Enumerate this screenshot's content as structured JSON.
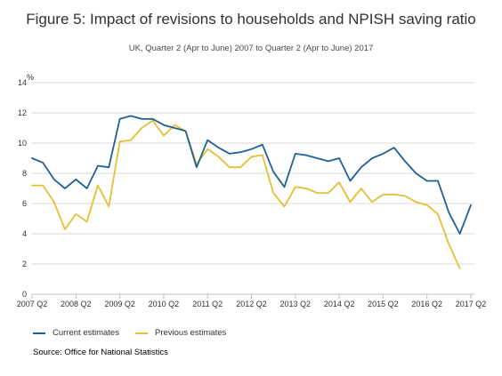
{
  "title": "Figure 5: Impact of revisions to households and NPISH saving ratio",
  "subtitle": "UK, Quarter 2 (Apr to June) 2007 to Quarter 2 (Apr to June) 2017",
  "source": "Source: Office for National Statistics",
  "colors": {
    "current": "#206095",
    "previous": "#e3c035",
    "grid": "#d9d9d9",
    "axis": "#bfbfbf"
  },
  "chart_data": {
    "type": "line",
    "ylabel": "%",
    "ylim": [
      0,
      14
    ],
    "yticks": [
      0,
      2,
      4,
      6,
      8,
      10,
      12,
      14
    ],
    "xtick_labels": [
      "2007 Q2",
      "2008 Q2",
      "2009 Q2",
      "2010 Q2",
      "2011 Q2",
      "2012 Q2",
      "2013 Q2",
      "2014 Q2",
      "2015 Q2",
      "2016 Q2",
      "2017 Q2"
    ],
    "x": [
      "2007 Q2",
      "2007 Q3",
      "2007 Q4",
      "2008 Q1",
      "2008 Q2",
      "2008 Q3",
      "2008 Q4",
      "2009 Q1",
      "2009 Q2",
      "2009 Q3",
      "2009 Q4",
      "2010 Q1",
      "2010 Q2",
      "2010 Q3",
      "2010 Q4",
      "2011 Q1",
      "2011 Q2",
      "2011 Q3",
      "2011 Q4",
      "2012 Q1",
      "2012 Q2",
      "2012 Q3",
      "2012 Q4",
      "2013 Q1",
      "2013 Q2",
      "2013 Q3",
      "2013 Q4",
      "2014 Q1",
      "2014 Q2",
      "2014 Q3",
      "2014 Q4",
      "2015 Q1",
      "2015 Q2",
      "2015 Q3",
      "2015 Q4",
      "2016 Q1",
      "2016 Q2",
      "2016 Q3",
      "2016 Q4",
      "2017 Q1",
      "2017 Q2"
    ],
    "grid": true,
    "legend_position": "bottom-left",
    "series": [
      {
        "name": "Current estimates",
        "color": "#206095",
        "values": [
          9.0,
          8.7,
          7.6,
          7.0,
          7.6,
          7.0,
          8.5,
          8.4,
          11.6,
          11.8,
          11.6,
          11.6,
          11.2,
          11.0,
          10.8,
          8.4,
          10.2,
          9.7,
          9.3,
          9.4,
          9.6,
          9.9,
          8.1,
          7.1,
          9.3,
          9.2,
          9.0,
          8.8,
          9.0,
          7.5,
          8.4,
          9.0,
          9.3,
          9.7,
          8.8,
          8.0,
          7.5,
          7.5,
          5.4,
          4.0,
          5.9
        ]
      },
      {
        "name": "Previous estimates",
        "color": "#e3c035",
        "values": [
          7.2,
          7.2,
          6.1,
          4.3,
          5.3,
          4.8,
          7.2,
          5.8,
          10.1,
          10.2,
          11.0,
          11.5,
          10.5,
          11.2,
          10.8,
          8.6,
          9.6,
          9.1,
          8.4,
          8.4,
          9.1,
          9.2,
          6.7,
          5.8,
          7.1,
          7.0,
          6.7,
          6.7,
          7.4,
          6.1,
          7.0,
          6.1,
          6.6,
          6.6,
          6.5,
          6.1,
          5.9,
          5.3,
          3.3,
          1.7,
          null
        ]
      }
    ]
  }
}
